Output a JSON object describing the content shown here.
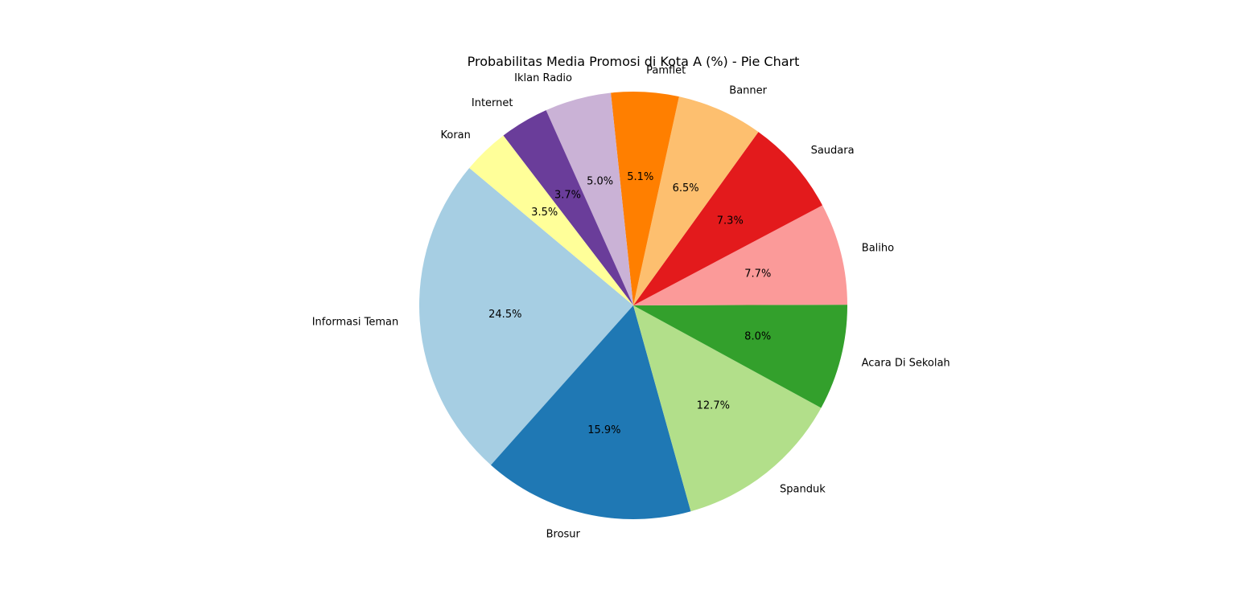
{
  "chart_data": {
    "type": "pie",
    "title": "Probabilitas Media Promosi di Kota A (%) - Pie Chart",
    "start_angle_deg": 140,
    "direction": "counterclockwise",
    "slices": [
      {
        "label": "Informasi Teman",
        "value": 24.5,
        "pct_text": "24.5%",
        "color": "#a6cee3"
      },
      {
        "label": "Brosur",
        "value": 15.9,
        "pct_text": "15.9%",
        "color": "#1f78b4"
      },
      {
        "label": "Spanduk",
        "value": 12.7,
        "pct_text": "12.7%",
        "color": "#b2df8a"
      },
      {
        "label": "Acara Di Sekolah",
        "value": 8.0,
        "pct_text": "8.0%",
        "color": "#33a02c"
      },
      {
        "label": "Baliho",
        "value": 7.7,
        "pct_text": "7.7%",
        "color": "#fb9a99"
      },
      {
        "label": "Saudara",
        "value": 7.3,
        "pct_text": "7.3%",
        "color": "#e31a1c"
      },
      {
        "label": "Banner",
        "value": 6.5,
        "pct_text": "6.5%",
        "color": "#fdbf6f"
      },
      {
        "label": "Pamflet",
        "value": 5.1,
        "pct_text": "5.1%",
        "color": "#ff7f00"
      },
      {
        "label": "Iklan Radio",
        "value": 5.0,
        "pct_text": "5.0%",
        "color": "#cab2d6"
      },
      {
        "label": "Internet",
        "value": 3.7,
        "pct_text": "3.7%",
        "color": "#6a3d9a"
      },
      {
        "label": "Koran",
        "value": 3.5,
        "pct_text": "3.5%",
        "color": "#ffff99"
      }
    ]
  }
}
